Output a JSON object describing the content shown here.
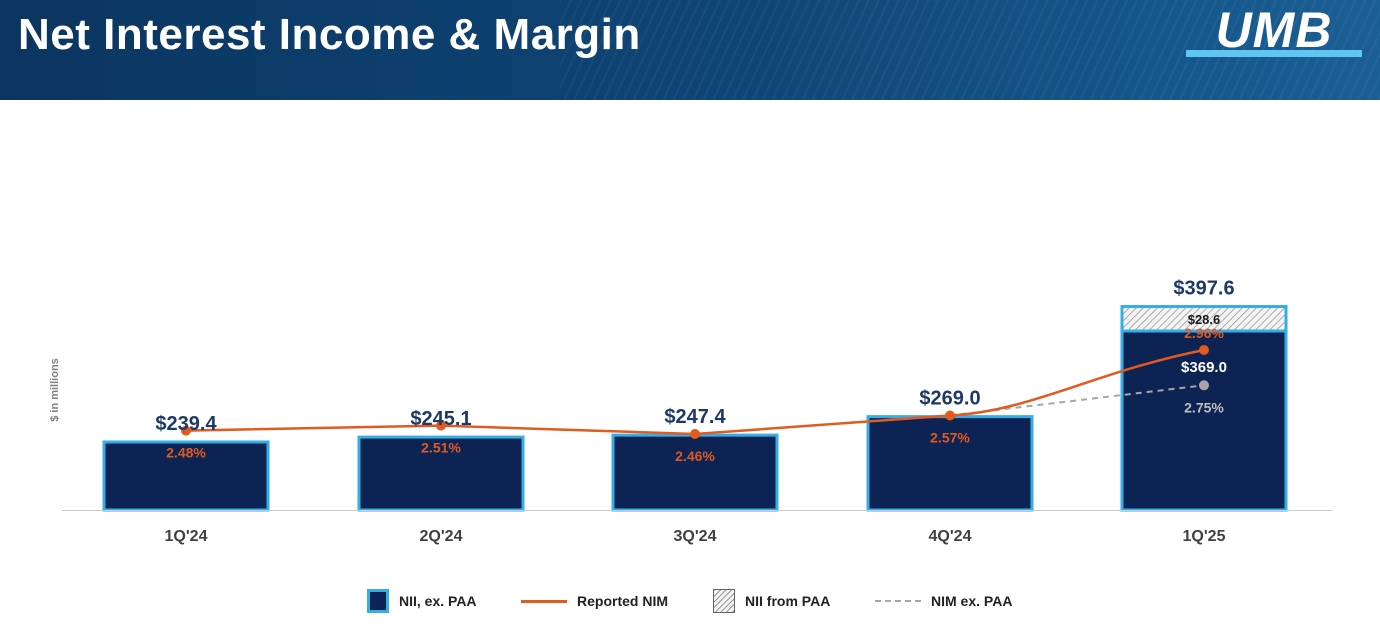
{
  "header": {
    "title": "Net Interest Income & Margin",
    "logo": "UMB"
  },
  "chart_data": {
    "type": "bar",
    "categories": [
      "1Q'24",
      "2Q'24",
      "3Q'24",
      "4Q'24",
      "1Q'25"
    ],
    "ylabel": "$ in millions",
    "series": [
      {
        "name": "NII, ex. PAA",
        "kind": "bar",
        "values": [
          239.4,
          245.1,
          247.4,
          269.0,
          369.0
        ],
        "labels": [
          "",
          "",
          "",
          "",
          "$369.0"
        ],
        "color": "#0c2354",
        "border_color": "#35aee6"
      },
      {
        "name": "NII from PAA",
        "kind": "bar-stacked-hatched",
        "values": [
          0,
          0,
          0,
          0,
          28.6
        ],
        "labels": [
          "",
          "",
          "",
          "",
          "$28.6"
        ]
      },
      {
        "name": "Reported NIM",
        "kind": "line",
        "values": [
          2.48,
          2.51,
          2.46,
          2.57,
          2.96
        ],
        "labels": [
          "2.48%",
          "2.51%",
          "2.46%",
          "2.57%",
          "2.96%"
        ],
        "color": "#e15a1f"
      },
      {
        "name": "NIM ex. PAA",
        "kind": "line-dashed",
        "values": [
          null,
          null,
          null,
          2.57,
          2.75
        ],
        "labels": [
          "",
          "",
          "",
          "",
          "2.75%"
        ],
        "color": "#a6a6a6"
      }
    ],
    "totals": [
      "$239.4",
      "$245.1",
      "$247.4",
      "$269.0",
      "$397.6"
    ]
  },
  "legend": {
    "nii_ex_paa": "NII, ex. PAA",
    "reported_nim": "Reported NIM",
    "nii_from_paa": "NII from PAA",
    "nim_ex_paa": "NIM ex. PAA"
  }
}
